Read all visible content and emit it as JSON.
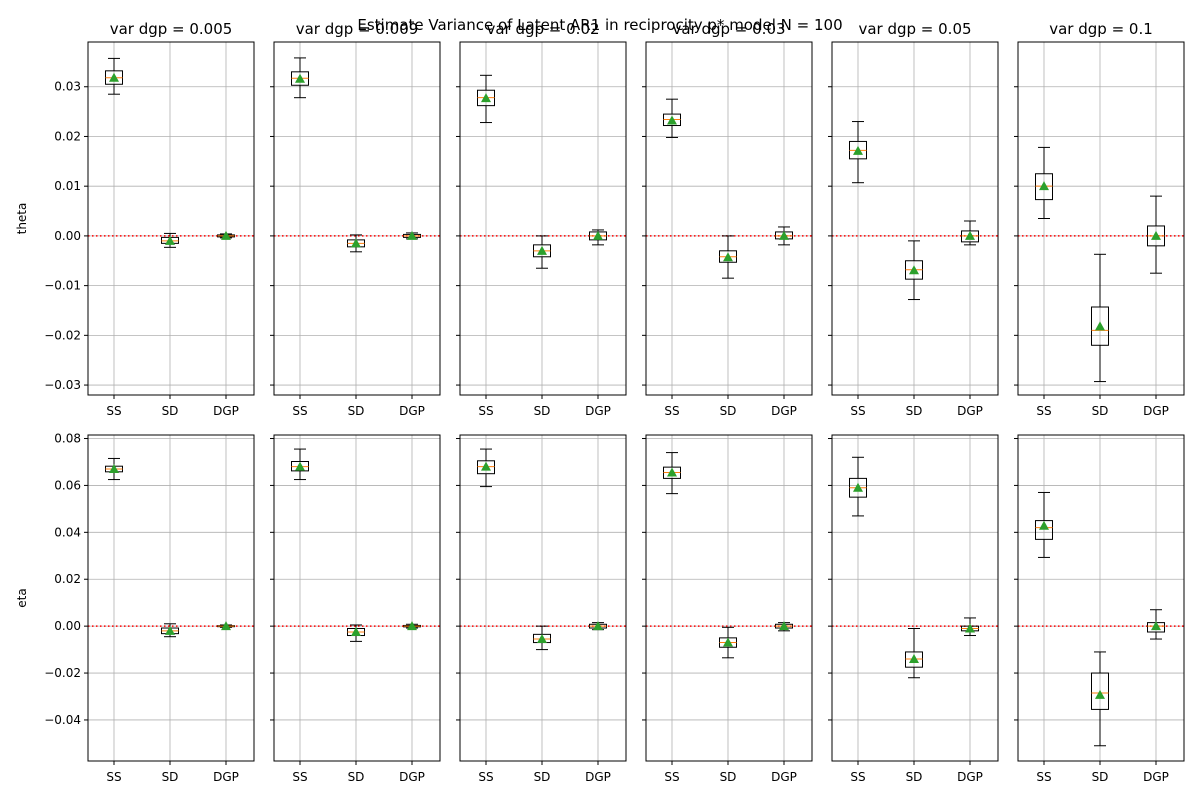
{
  "chart_data": {
    "type": "boxplot",
    "title": "Estimate Variance of Latent AR1 in reciprocity p* model N = 100",
    "categories": [
      "SS",
      "SD",
      "DGP"
    ],
    "columns": [
      "var dgp = 0.005",
      "var dgp = 0.009",
      "var dgp = 0.02",
      "var dgp = 0.03",
      "var dgp = 0.05",
      "var dgp = 0.1"
    ],
    "reference_line": {
      "y": 0,
      "color": "#ff0000",
      "style": "dotted"
    },
    "grid": true,
    "colors": {
      "box": "#000000",
      "median": "#ff7f0e",
      "mean_marker": "#2ca02c",
      "grid": "#b0b0b0"
    },
    "rows": [
      {
        "ylabel": "theta",
        "ylim": [
          -0.032,
          0.039
        ],
        "yticks": [
          -0.03,
          -0.02,
          -0.01,
          0.0,
          0.01,
          0.02,
          0.03
        ],
        "yticklabels": [
          "−0.03",
          "−0.02",
          "−0.01",
          "0.00",
          "0.01",
          "0.02",
          "0.03"
        ],
        "panels": [
          [
            {
              "min": 0.0285,
              "q1": 0.0305,
              "median": 0.0318,
              "q3": 0.0332,
              "max": 0.0357,
              "mean": 0.0318
            },
            {
              "min": -0.0023,
              "q1": -0.0015,
              "median": -0.001,
              "q3": -0.0003,
              "max": 0.0005,
              "mean": -0.001
            },
            {
              "min": -0.0004,
              "q1": -0.0002,
              "median": 0.0,
              "q3": 0.0002,
              "max": 0.0004,
              "mean": 0.0
            }
          ],
          [
            {
              "min": 0.0278,
              "q1": 0.0303,
              "median": 0.0317,
              "q3": 0.033,
              "max": 0.0358,
              "mean": 0.0316
            },
            {
              "min": -0.0032,
              "q1": -0.0022,
              "median": -0.0015,
              "q3": -0.0008,
              "max": 0.0002,
              "mean": -0.0015
            },
            {
              "min": -0.0006,
              "q1": -0.0003,
              "median": 0.0,
              "q3": 0.0003,
              "max": 0.0006,
              "mean": 0.0
            }
          ],
          [
            {
              "min": 0.0228,
              "q1": 0.0262,
              "median": 0.0278,
              "q3": 0.0293,
              "max": 0.0323,
              "mean": 0.0277
            },
            {
              "min": -0.0065,
              "q1": -0.0042,
              "median": -0.003,
              "q3": -0.0018,
              "max": 0.0,
              "mean": -0.003
            },
            {
              "min": -0.0018,
              "q1": -0.0008,
              "median": 0.0,
              "q3": 0.0008,
              "max": 0.0012,
              "mean": 0.0
            }
          ],
          [
            {
              "min": 0.0198,
              "q1": 0.0222,
              "median": 0.0234,
              "q3": 0.0245,
              "max": 0.0275,
              "mean": 0.0232
            },
            {
              "min": -0.0085,
              "q1": -0.0053,
              "median": -0.0042,
              "q3": -0.003,
              "max": 0.0,
              "mean": -0.0043
            },
            {
              "min": -0.0018,
              "q1": -0.0006,
              "median": 0.0,
              "q3": 0.0008,
              "max": 0.0018,
              "mean": 0.0
            }
          ],
          [
            {
              "min": 0.0107,
              "q1": 0.0155,
              "median": 0.0172,
              "q3": 0.019,
              "max": 0.023,
              "mean": 0.0171
            },
            {
              "min": -0.0128,
              "q1": -0.0087,
              "median": -0.0068,
              "q3": -0.005,
              "max": -0.001,
              "mean": -0.0069
            },
            {
              "min": -0.0018,
              "q1": -0.0012,
              "median": 0.0,
              "q3": 0.001,
              "max": 0.003,
              "mean": 0.0
            }
          ],
          [
            {
              "min": 0.0035,
              "q1": 0.0073,
              "median": 0.01,
              "q3": 0.0125,
              "max": 0.0178,
              "mean": 0.01
            },
            {
              "min": -0.0293,
              "q1": -0.022,
              "median": -0.019,
              "q3": -0.0143,
              "max": -0.0037,
              "mean": -0.0182
            },
            {
              "min": -0.0075,
              "q1": -0.002,
              "median": 0.0,
              "q3": 0.002,
              "max": 0.008,
              "mean": 0.0
            }
          ]
        ]
      },
      {
        "ylabel": "eta",
        "ylim": [
          -0.0575,
          0.0815
        ],
        "yticks": [
          -0.04,
          -0.02,
          0.0,
          0.02,
          0.04,
          0.06,
          0.08
        ],
        "yticklabels": [
          "−0.04",
          "−0.02",
          "0.00",
          "0.02",
          "0.04",
          "0.06",
          "0.08"
        ],
        "panels": [
          [
            {
              "min": 0.0625,
              "q1": 0.0658,
              "median": 0.067,
              "q3": 0.0682,
              "max": 0.0715,
              "mean": 0.067
            },
            {
              "min": -0.0045,
              "q1": -0.0032,
              "median": -0.002,
              "q3": -0.0008,
              "max": 0.001,
              "mean": -0.002
            },
            {
              "min": -0.0005,
              "q1": -0.0002,
              "median": 0.0,
              "q3": 0.0002,
              "max": 0.0005,
              "mean": 0.0
            }
          ],
          [
            {
              "min": 0.0625,
              "q1": 0.0662,
              "median": 0.068,
              "q3": 0.0702,
              "max": 0.0755,
              "mean": 0.068
            },
            {
              "min": -0.0065,
              "q1": -0.004,
              "median": -0.0025,
              "q3": -0.001,
              "max": 0.0005,
              "mean": -0.0025
            },
            {
              "min": -0.0008,
              "q1": -0.0003,
              "median": 0.0,
              "q3": 0.0003,
              "max": 0.0008,
              "mean": 0.0
            }
          ],
          [
            {
              "min": 0.0595,
              "q1": 0.065,
              "median": 0.068,
              "q3": 0.0705,
              "max": 0.0755,
              "mean": 0.068
            },
            {
              "min": -0.01,
              "q1": -0.007,
              "median": -0.0055,
              "q3": -0.0035,
              "max": 0.0,
              "mean": -0.0055
            },
            {
              "min": -0.0015,
              "q1": -0.0008,
              "median": 0.0,
              "q3": 0.0008,
              "max": 0.0015,
              "mean": 0.0
            }
          ],
          [
            {
              "min": 0.0565,
              "q1": 0.063,
              "median": 0.0655,
              "q3": 0.0678,
              "max": 0.074,
              "mean": 0.0655
            },
            {
              "min": -0.0135,
              "q1": -0.009,
              "median": -0.007,
              "q3": -0.005,
              "max": -0.0005,
              "mean": -0.007
            },
            {
              "min": -0.002,
              "q1": -0.0008,
              "median": 0.0,
              "q3": 0.0008,
              "max": 0.0015,
              "mean": 0.0
            }
          ],
          [
            {
              "min": 0.047,
              "q1": 0.055,
              "median": 0.059,
              "q3": 0.063,
              "max": 0.072,
              "mean": 0.059
            },
            {
              "min": -0.022,
              "q1": -0.0175,
              "median": -0.014,
              "q3": -0.011,
              "max": -0.001,
              "mean": -0.014
            },
            {
              "min": -0.004,
              "q1": -0.002,
              "median": -0.001,
              "q3": 0.0,
              "max": 0.0035,
              "mean": -0.001
            }
          ],
          [
            {
              "min": 0.0293,
              "q1": 0.037,
              "median": 0.042,
              "q3": 0.045,
              "max": 0.057,
              "mean": 0.0428
            },
            {
              "min": -0.051,
              "q1": -0.0355,
              "median": -0.0285,
              "q3": -0.02,
              "max": -0.011,
              "mean": -0.0293
            },
            {
              "min": -0.0055,
              "q1": -0.0025,
              "median": 0.0,
              "q3": 0.0015,
              "max": 0.007,
              "mean": 0.0
            }
          ]
        ]
      }
    ]
  }
}
